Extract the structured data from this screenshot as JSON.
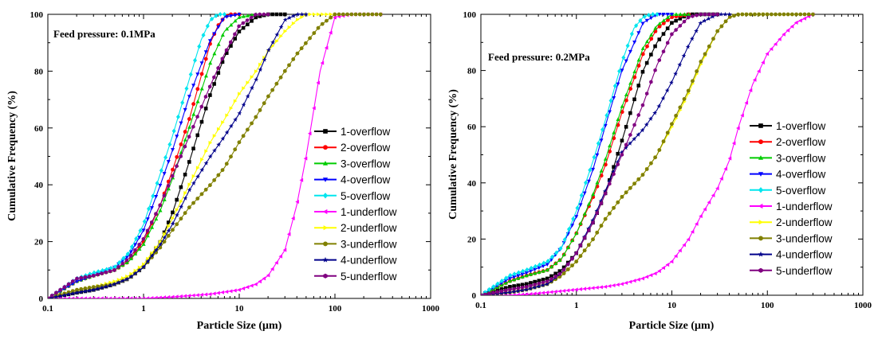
{
  "chart_data": [
    {
      "type": "line",
      "annotation": "Feed pressure: 0.1MPa",
      "xlabel": "Particle Size (μm)",
      "ylabel": "Cumulative Frequency (%)",
      "xscale": "log",
      "xlim": [
        0.1,
        1000
      ],
      "ylim": [
        0,
        100
      ],
      "x_ticks": [
        "0.1",
        "1",
        "10",
        "100",
        "1000"
      ],
      "y_ticks": [
        "0",
        "20",
        "40",
        "60",
        "80",
        "100"
      ],
      "legend_position": "right-middle",
      "series": [
        {
          "name": "1-overflow",
          "color": "#000000",
          "marker": "square",
          "x": [
            0.1,
            0.2,
            0.3,
            0.5,
            0.7,
            1,
            1.5,
            2,
            3,
            5,
            7,
            10,
            15,
            20,
            30
          ],
          "y": [
            0,
            2,
            3,
            5,
            7,
            11,
            20,
            30,
            48,
            72,
            85,
            94,
            99,
            100,
            100
          ]
        },
        {
          "name": "2-overflow",
          "color": "#ff0000",
          "marker": "circle",
          "x": [
            0.1,
            0.2,
            0.3,
            0.5,
            0.7,
            1,
            1.5,
            2,
            3,
            5,
            6,
            7,
            8,
            10
          ],
          "y": [
            0,
            6,
            8,
            10,
            13,
            20,
            33,
            45,
            63,
            90,
            96,
            99,
            100,
            100
          ]
        },
        {
          "name": "3-overflow",
          "color": "#00cc00",
          "marker": "triangle-up",
          "x": [
            0.1,
            0.2,
            0.3,
            0.5,
            0.7,
            1,
            1.5,
            2,
            3,
            5,
            7,
            10,
            15
          ],
          "y": [
            0,
            6,
            8,
            10,
            13,
            19,
            31,
            42,
            60,
            83,
            94,
            99,
            100
          ]
        },
        {
          "name": "4-overflow",
          "color": "#0000ff",
          "marker": "triangle-down",
          "x": [
            0.1,
            0.2,
            0.3,
            0.5,
            0.7,
            1,
            1.5,
            2,
            3,
            5,
            7,
            10
          ],
          "y": [
            0,
            6,
            8,
            11,
            15,
            24,
            40,
            52,
            71,
            91,
            99,
            100
          ]
        },
        {
          "name": "5-overflow",
          "color": "#00e5ee",
          "marker": "diamond",
          "x": [
            0.1,
            0.2,
            0.3,
            0.5,
            0.7,
            1,
            1.5,
            2,
            3,
            4,
            5,
            6,
            7
          ],
          "y": [
            0,
            7,
            9,
            11,
            16,
            26,
            44,
            57,
            77,
            91,
            98,
            100,
            100
          ]
        },
        {
          "name": "1-underflow",
          "color": "#ff00ff",
          "marker": "triangle-left",
          "x": [
            0.1,
            0.3,
            0.5,
            1,
            2,
            5,
            10,
            15,
            20,
            30,
            40,
            50,
            70,
            100,
            150,
            300
          ],
          "y": [
            0,
            0,
            0,
            0,
            0.5,
            1.5,
            3,
            5,
            8,
            17,
            33,
            50,
            80,
            99,
            100,
            100
          ]
        },
        {
          "name": "2-underflow",
          "color": "#ffff00",
          "marker": "triangle-right",
          "x": [
            0.1,
            0.2,
            0.3,
            0.5,
            0.7,
            1,
            1.5,
            2,
            3,
            5,
            7,
            10,
            15,
            20,
            30,
            40,
            50,
            70,
            100
          ],
          "y": [
            0,
            3,
            4,
            6,
            8,
            12,
            20,
            28,
            40,
            55,
            63,
            72,
            80,
            87,
            94,
            98,
            100,
            100,
            100
          ]
        },
        {
          "name": "3-underflow",
          "color": "#808000",
          "marker": "circle",
          "x": [
            0.1,
            0.2,
            0.3,
            0.5,
            0.7,
            1,
            1.5,
            2,
            3,
            5,
            7,
            10,
            15,
            20,
            30,
            40,
            50,
            70,
            100,
            150,
            300
          ],
          "y": [
            0,
            3,
            4,
            5,
            7,
            11,
            18,
            24,
            32,
            40,
            46,
            55,
            64,
            71,
            80,
            86,
            90,
            96,
            100,
            100,
            100
          ]
        },
        {
          "name": "4-underflow",
          "color": "#00008b",
          "marker": "star",
          "x": [
            0.1,
            0.2,
            0.3,
            0.5,
            0.7,
            1,
            1.5,
            2,
            3,
            5,
            7,
            10,
            15,
            20,
            30,
            40,
            50
          ],
          "y": [
            0,
            2,
            3,
            5,
            7,
            11,
            19,
            26,
            38,
            50,
            57,
            65,
            77,
            87,
            98,
            100,
            100
          ]
        },
        {
          "name": "5-underflow",
          "color": "#800080",
          "marker": "hexagon",
          "x": [
            0.1,
            0.2,
            0.3,
            0.5,
            0.7,
            1,
            1.5,
            2,
            3,
            5,
            7,
            10,
            15,
            20
          ],
          "y": [
            0,
            7,
            8,
            10,
            14,
            21,
            33,
            43,
            57,
            75,
            86,
            96,
            100,
            100
          ]
        }
      ]
    },
    {
      "type": "line",
      "annotation": "Feed pressure: 0.2MPa",
      "xlabel": "Particle Size (μm)",
      "ylabel": "Cumulative Frequency (%)",
      "xscale": "log",
      "xlim": [
        0.1,
        1000
      ],
      "ylim": [
        0,
        100
      ],
      "x_ticks": [
        "0.1",
        "1",
        "10",
        "100",
        "1000"
      ],
      "y_ticks": [
        "0",
        "20",
        "40",
        "60",
        "80",
        "100"
      ],
      "legend_position": "right-middle",
      "series": [
        {
          "name": "1-overflow",
          "color": "#000000",
          "marker": "square",
          "x": [
            0.1,
            0.2,
            0.3,
            0.5,
            0.7,
            1,
            1.5,
            2,
            3,
            5,
            7,
            10,
            15,
            20,
            30
          ],
          "y": [
            0,
            3,
            4,
            6,
            9,
            15,
            26,
            36,
            55,
            80,
            90,
            97,
            100,
            100,
            100
          ]
        },
        {
          "name": "2-overflow",
          "color": "#ff0000",
          "marker": "circle",
          "x": [
            0.1,
            0.2,
            0.3,
            0.5,
            0.7,
            1,
            1.5,
            2,
            3,
            5,
            7,
            10,
            15
          ],
          "y": [
            0,
            5,
            7,
            9,
            13,
            22,
            35,
            46,
            65,
            86,
            95,
            99,
            100
          ]
        },
        {
          "name": "3-overflow",
          "color": "#00cc00",
          "marker": "triangle-up",
          "x": [
            0.1,
            0.2,
            0.3,
            0.5,
            0.7,
            1,
            1.5,
            2,
            3,
            5,
            7,
            10,
            15
          ],
          "y": [
            0,
            5,
            7,
            9,
            13,
            22,
            36,
            48,
            67,
            88,
            96,
            100,
            100
          ]
        },
        {
          "name": "4-overflow",
          "color": "#0000ff",
          "marker": "triangle-down",
          "x": [
            0.1,
            0.2,
            0.3,
            0.5,
            0.7,
            1,
            1.5,
            2,
            3,
            5,
            7,
            10
          ],
          "y": [
            0,
            6,
            8,
            11,
            17,
            28,
            45,
            60,
            80,
            97,
            100,
            100
          ]
        },
        {
          "name": "5-overflow",
          "color": "#00e5ee",
          "marker": "diamond",
          "x": [
            0.1,
            0.2,
            0.3,
            0.5,
            0.7,
            1,
            1.5,
            2,
            3,
            4,
            5,
            6,
            7
          ],
          "y": [
            0,
            7,
            9,
            12,
            17,
            30,
            48,
            62,
            83,
            95,
            99,
            100,
            100
          ]
        },
        {
          "name": "1-underflow",
          "color": "#ff00ff",
          "marker": "triangle-left",
          "x": [
            0.1,
            0.2,
            0.3,
            0.5,
            1,
            2,
            3,
            5,
            7,
            10,
            15,
            20,
            30,
            40,
            50,
            70,
            100,
            150,
            200,
            300
          ],
          "y": [
            0,
            0,
            0.3,
            1,
            2,
            3,
            4,
            6,
            8,
            12,
            20,
            28,
            38,
            48,
            60,
            75,
            86,
            93,
            97,
            100
          ]
        },
        {
          "name": "2-underflow",
          "color": "#ffff00",
          "marker": "triangle-right",
          "x": [
            0.1,
            0.2,
            0.3,
            0.5,
            0.7,
            1,
            1.5,
            2,
            3,
            5,
            7,
            10,
            15,
            20,
            30,
            40,
            50,
            70,
            100
          ],
          "y": [
            0,
            1,
            2,
            4,
            7,
            12,
            20,
            27,
            35,
            43,
            50,
            60,
            72,
            82,
            94,
            99,
            100,
            100,
            100
          ]
        },
        {
          "name": "3-underflow",
          "color": "#808000",
          "marker": "circle",
          "x": [
            0.1,
            0.2,
            0.3,
            0.5,
            0.7,
            1,
            1.5,
            2,
            3,
            5,
            7,
            10,
            15,
            20,
            30,
            40,
            50,
            70,
            100,
            150,
            300
          ],
          "y": [
            0,
            1,
            2,
            4,
            7,
            12,
            20,
            27,
            35,
            43,
            50,
            61,
            73,
            83,
            94,
            99,
            100,
            100,
            100,
            100,
            100
          ]
        },
        {
          "name": "4-underflow",
          "color": "#00008b",
          "marker": "star",
          "x": [
            0.1,
            0.2,
            0.3,
            0.5,
            0.7,
            1,
            1.5,
            2,
            3,
            5,
            7,
            10,
            15,
            20,
            30,
            40
          ],
          "y": [
            0,
            1,
            2,
            4,
            8,
            15,
            27,
            37,
            51,
            59,
            66,
            76,
            89,
            97,
            100,
            100
          ]
        },
        {
          "name": "5-underflow",
          "color": "#800080",
          "marker": "hexagon",
          "x": [
            0.1,
            0.2,
            0.3,
            0.5,
            0.7,
            1,
            1.5,
            2,
            3,
            5,
            7,
            10,
            15,
            20,
            30
          ],
          "y": [
            0,
            2,
            3,
            5,
            8,
            15,
            26,
            36,
            50,
            68,
            82,
            93,
            99,
            100,
            100
          ]
        }
      ]
    }
  ]
}
